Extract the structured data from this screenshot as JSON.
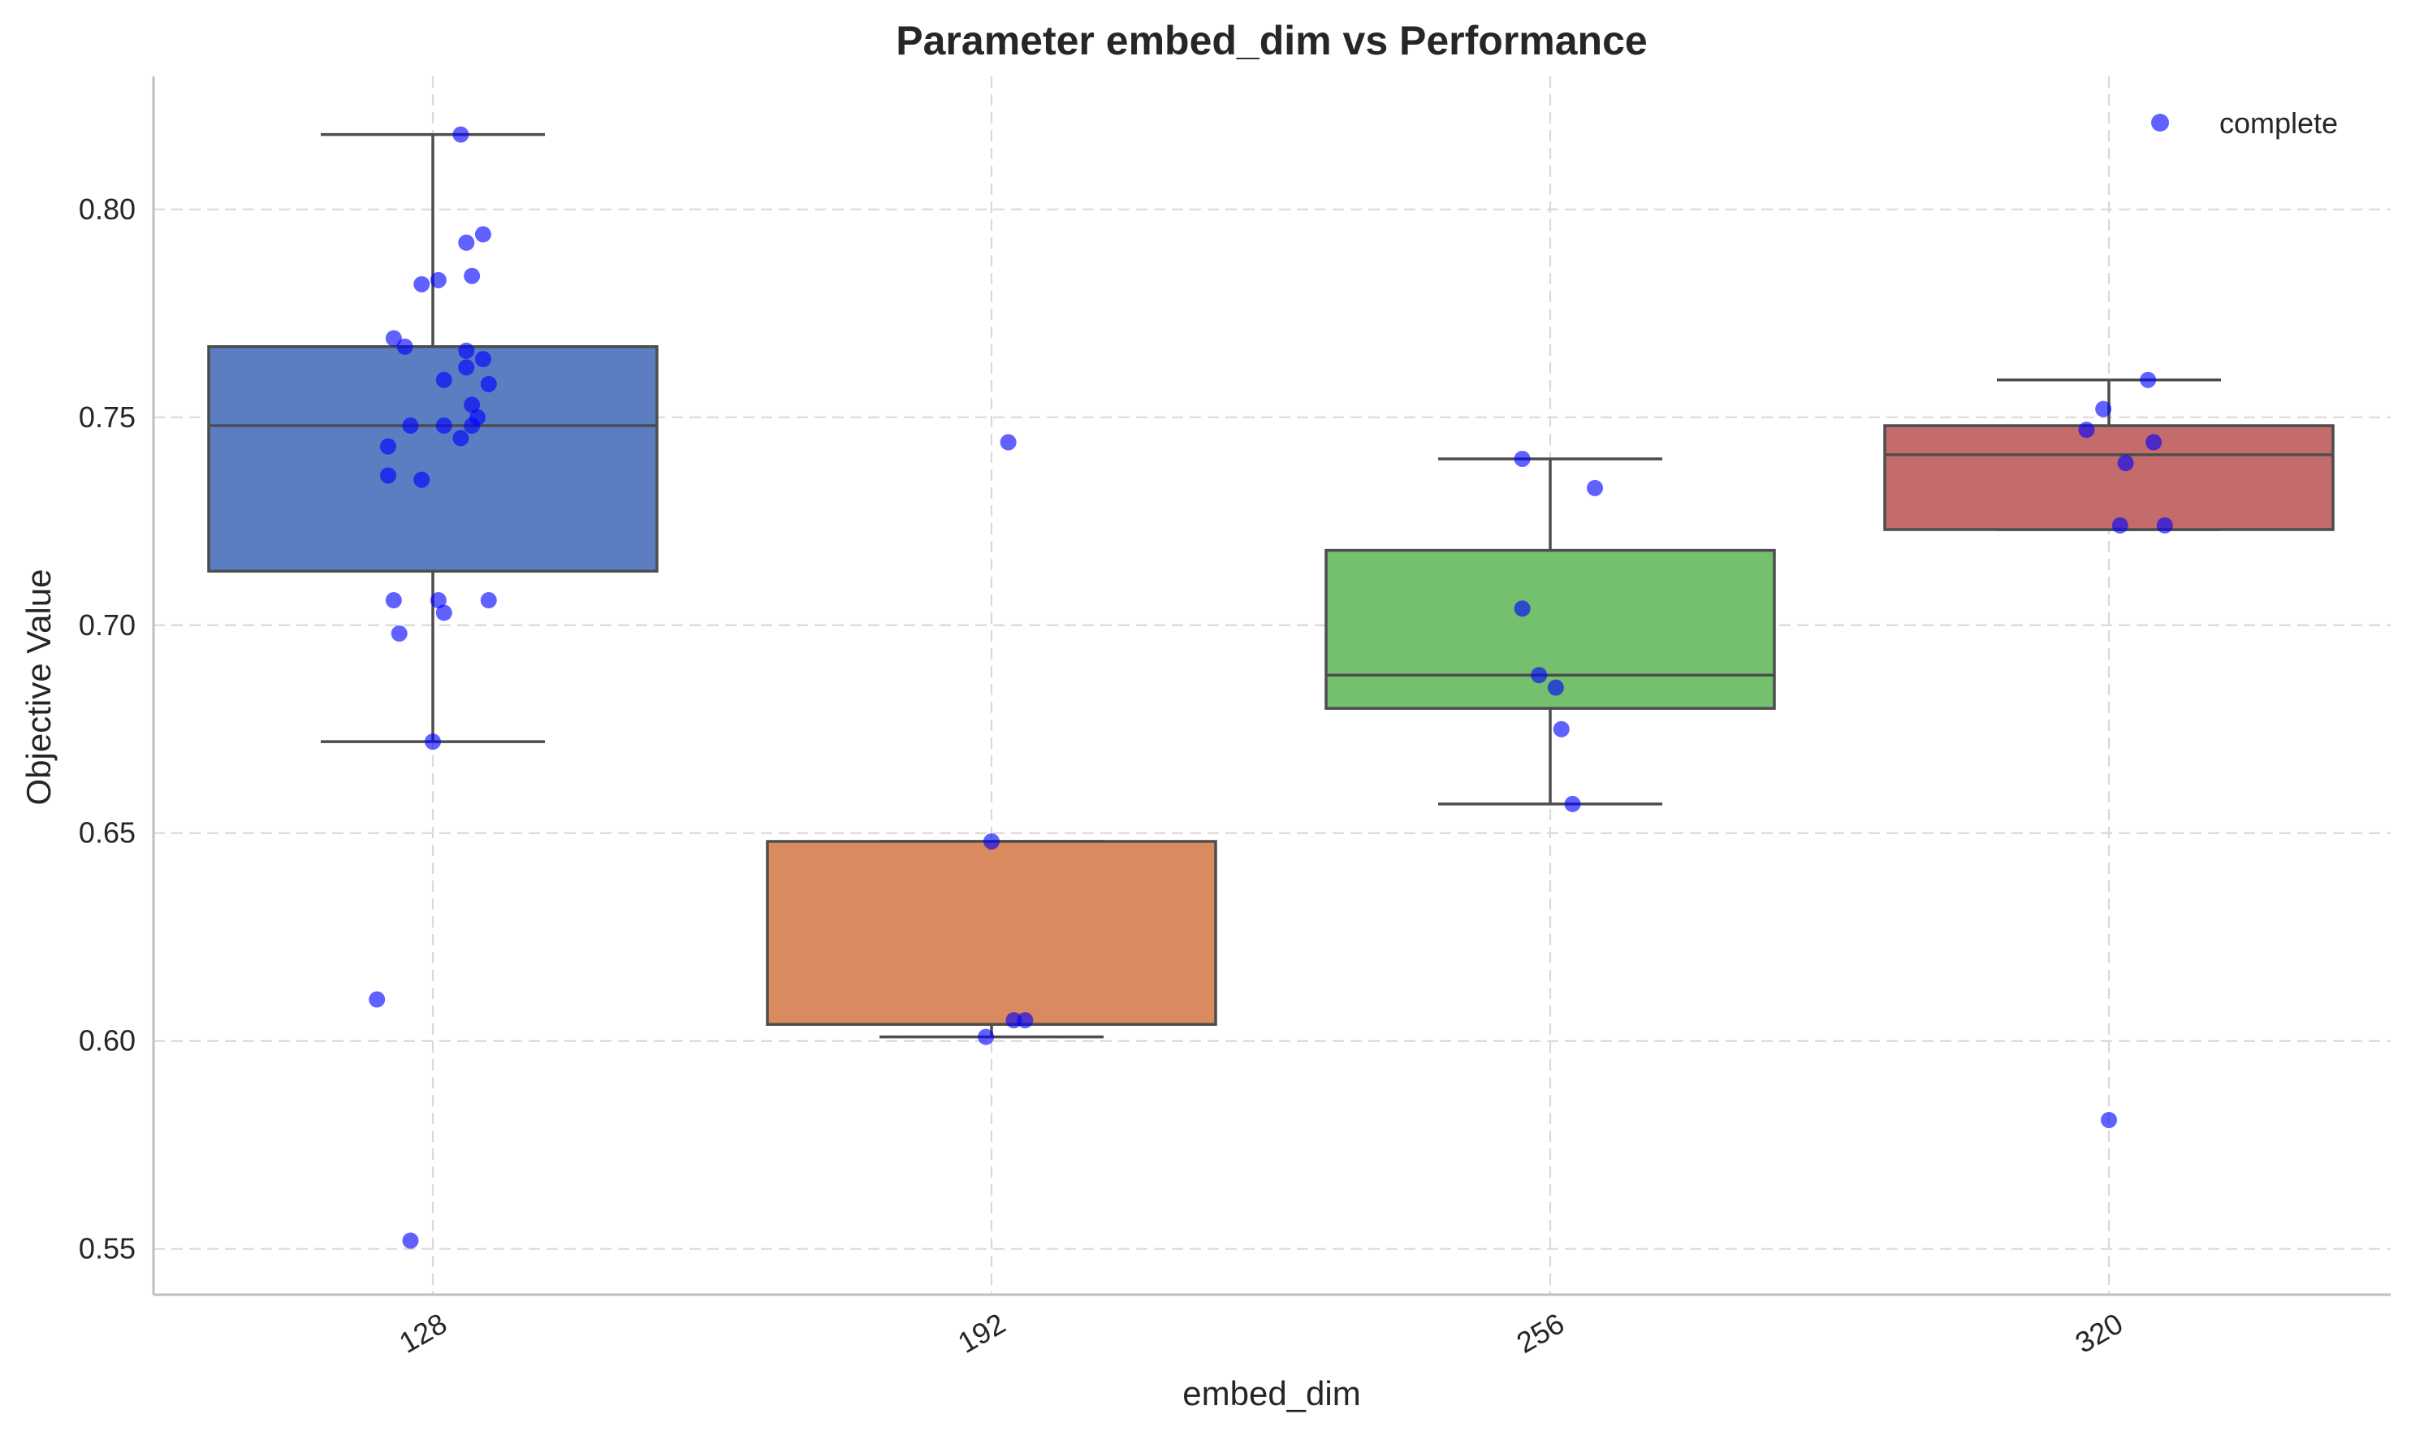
{
  "chart_data": {
    "type": "box",
    "title": "Parameter embed_dim vs Performance",
    "xlabel": "embed_dim",
    "ylabel": "Objective Value",
    "categories": [
      "128",
      "192",
      "256",
      "320"
    ],
    "ylim": [
      0.539,
      0.832
    ],
    "yticks": [
      0.55,
      0.6,
      0.65,
      0.7,
      0.75,
      0.8
    ],
    "ytick_labels": [
      "0.55",
      "0.60",
      "0.65",
      "0.70",
      "0.75",
      "0.80"
    ],
    "grid": true,
    "legend": {
      "position": "top-right",
      "entries": [
        {
          "label": "complete",
          "color": "#0000ff"
        }
      ]
    },
    "point_color": "#0000ff",
    "median_color": "#4a4a4a",
    "boxes": [
      {
        "category": "128",
        "color": "#5b7dc2",
        "q1": 0.713,
        "median": 0.748,
        "q3": 0.767,
        "whisker_low": 0.672,
        "whisker_high": 0.818
      },
      {
        "category": "192",
        "color": "#d98a5f",
        "q1": 0.604,
        "median": 0.604,
        "q3": 0.648,
        "whisker_low": 0.601,
        "whisker_high": 0.648
      },
      {
        "category": "256",
        "color": "#74c06f",
        "q1": 0.68,
        "median": 0.688,
        "q3": 0.718,
        "whisker_low": 0.657,
        "whisker_high": 0.74
      },
      {
        "category": "320",
        "color": "#c46c6c",
        "q1": 0.723,
        "median": 0.741,
        "q3": 0.748,
        "whisker_low": 0.723,
        "whisker_high": 0.759
      }
    ],
    "points": [
      {
        "category": "128",
        "jitter": 0.05,
        "value": 0.818
      },
      {
        "category": "128",
        "jitter": 0.09,
        "value": 0.794
      },
      {
        "category": "128",
        "jitter": 0.06,
        "value": 0.792
      },
      {
        "category": "128",
        "jitter": 0.07,
        "value": 0.784
      },
      {
        "category": "128",
        "jitter": 0.01,
        "value": 0.783
      },
      {
        "category": "128",
        "jitter": -0.02,
        "value": 0.782
      },
      {
        "category": "128",
        "jitter": -0.07,
        "value": 0.769
      },
      {
        "category": "128",
        "jitter": -0.05,
        "value": 0.767
      },
      {
        "category": "128",
        "jitter": 0.06,
        "value": 0.766
      },
      {
        "category": "128",
        "jitter": 0.09,
        "value": 0.764
      },
      {
        "category": "128",
        "jitter": 0.06,
        "value": 0.762
      },
      {
        "category": "128",
        "jitter": 0.02,
        "value": 0.759
      },
      {
        "category": "128",
        "jitter": 0.1,
        "value": 0.758
      },
      {
        "category": "128",
        "jitter": 0.07,
        "value": 0.753
      },
      {
        "category": "128",
        "jitter": 0.08,
        "value": 0.75
      },
      {
        "category": "128",
        "jitter": -0.04,
        "value": 0.748
      },
      {
        "category": "128",
        "jitter": 0.02,
        "value": 0.748
      },
      {
        "category": "128",
        "jitter": 0.07,
        "value": 0.748
      },
      {
        "category": "128",
        "jitter": 0.05,
        "value": 0.745
      },
      {
        "category": "128",
        "jitter": -0.08,
        "value": 0.743
      },
      {
        "category": "128",
        "jitter": -0.08,
        "value": 0.736
      },
      {
        "category": "128",
        "jitter": -0.02,
        "value": 0.735
      },
      {
        "category": "128",
        "jitter": -0.07,
        "value": 0.706
      },
      {
        "category": "128",
        "jitter": 0.01,
        "value": 0.706
      },
      {
        "category": "128",
        "jitter": 0.1,
        "value": 0.706
      },
      {
        "category": "128",
        "jitter": 0.02,
        "value": 0.703
      },
      {
        "category": "128",
        "jitter": -0.06,
        "value": 0.698
      },
      {
        "category": "128",
        "jitter": 0.0,
        "value": 0.672
      },
      {
        "category": "128",
        "jitter": -0.1,
        "value": 0.61
      },
      {
        "category": "128",
        "jitter": -0.04,
        "value": 0.552
      },
      {
        "category": "192",
        "jitter": 0.03,
        "value": 0.744
      },
      {
        "category": "192",
        "jitter": 0.0,
        "value": 0.648
      },
      {
        "category": "192",
        "jitter": 0.04,
        "value": 0.605
      },
      {
        "category": "192",
        "jitter": 0.06,
        "value": 0.605
      },
      {
        "category": "192",
        "jitter": -0.01,
        "value": 0.601
      },
      {
        "category": "256",
        "jitter": -0.05,
        "value": 0.74
      },
      {
        "category": "256",
        "jitter": 0.08,
        "value": 0.733
      },
      {
        "category": "256",
        "jitter": -0.05,
        "value": 0.704
      },
      {
        "category": "256",
        "jitter": -0.02,
        "value": 0.688
      },
      {
        "category": "256",
        "jitter": 0.01,
        "value": 0.685
      },
      {
        "category": "256",
        "jitter": 0.02,
        "value": 0.675
      },
      {
        "category": "256",
        "jitter": 0.04,
        "value": 0.657
      },
      {
        "category": "320",
        "jitter": 0.07,
        "value": 0.759
      },
      {
        "category": "320",
        "jitter": -0.01,
        "value": 0.752
      },
      {
        "category": "320",
        "jitter": -0.04,
        "value": 0.747
      },
      {
        "category": "320",
        "jitter": 0.08,
        "value": 0.744
      },
      {
        "category": "320",
        "jitter": 0.03,
        "value": 0.739
      },
      {
        "category": "320",
        "jitter": 0.02,
        "value": 0.724
      },
      {
        "category": "320",
        "jitter": 0.1,
        "value": 0.724
      },
      {
        "category": "320",
        "jitter": 0.0,
        "value": 0.581
      }
    ]
  }
}
